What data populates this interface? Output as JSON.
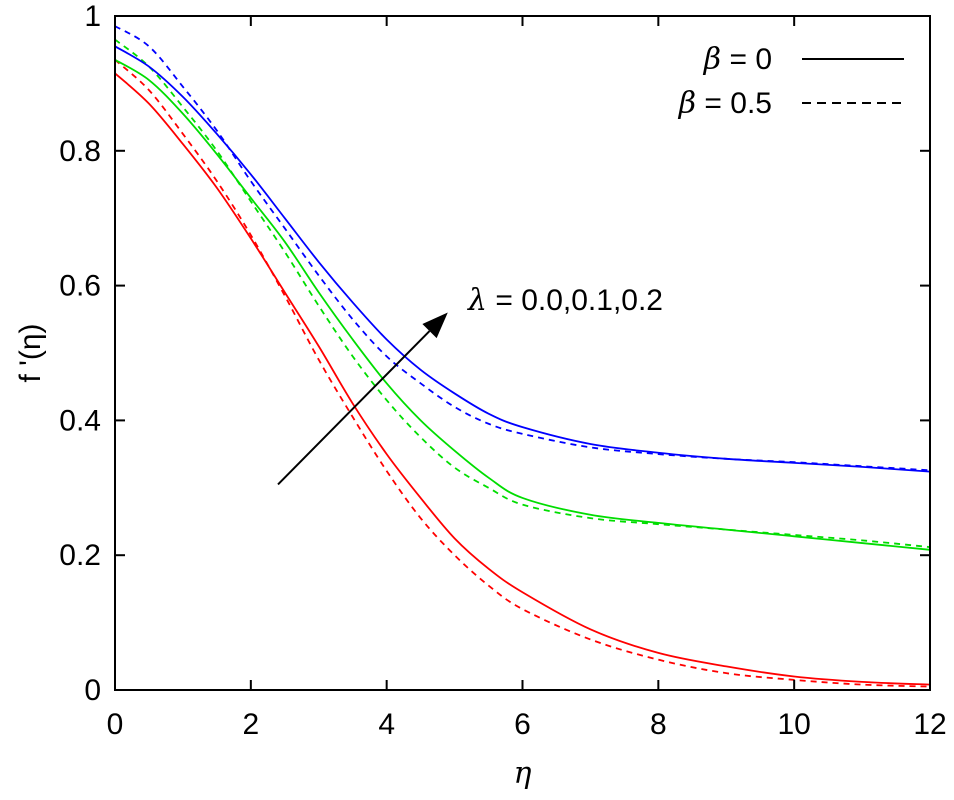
{
  "chart_data": {
    "type": "line",
    "xlabel": "η",
    "ylabel": "f '(η)",
    "xlim": [
      0,
      12
    ],
    "ylim": [
      0,
      1
    ],
    "x_ticks": [
      "0",
      "2",
      "4",
      "6",
      "8",
      "10",
      "12"
    ],
    "y_ticks": [
      "0",
      "0.2",
      "0.4",
      "0.6",
      "0.8",
      "1"
    ],
    "grid": false,
    "legend": {
      "placement": "top-right",
      "entries": [
        {
          "symbol": "β",
          "text": " = 0",
          "linestyle": "solid"
        },
        {
          "symbol": "β",
          "text": " = 0.5",
          "linestyle": "dashed"
        }
      ]
    },
    "annotation": {
      "symbol": "λ",
      "text": " = 0.0,0.1,0.2",
      "arrow": {
        "from": [
          2.4,
          0.305
        ],
        "to": [
          4.9,
          0.56
        ]
      }
    },
    "series": [
      {
        "lambda": "0.0",
        "beta": "0",
        "color": "#ff0000",
        "dash": false,
        "x": [
          0,
          0.5,
          1,
          1.5,
          2,
          2.5,
          3,
          3.5,
          4,
          4.5,
          5,
          5.5,
          6,
          7,
          8,
          9,
          10,
          11,
          12
        ],
        "y": [
          0.915,
          0.87,
          0.81,
          0.745,
          0.67,
          0.59,
          0.51,
          0.425,
          0.35,
          0.285,
          0.225,
          0.18,
          0.145,
          0.09,
          0.055,
          0.035,
          0.02,
          0.012,
          0.008
        ]
      },
      {
        "lambda": "0.0",
        "beta": "0.5",
        "color": "#ff0000",
        "dash": true,
        "x": [
          0,
          0.5,
          1,
          1.5,
          2,
          2.5,
          3,
          3.5,
          4,
          4.5,
          5,
          5.5,
          6,
          7,
          8,
          9,
          10,
          11,
          12
        ],
        "y": [
          0.935,
          0.89,
          0.825,
          0.755,
          0.675,
          0.585,
          0.49,
          0.405,
          0.325,
          0.255,
          0.2,
          0.155,
          0.12,
          0.075,
          0.045,
          0.025,
          0.015,
          0.008,
          0.005
        ]
      },
      {
        "lambda": "0.1",
        "beta": "0",
        "color": "#00dd00",
        "dash": false,
        "x": [
          0,
          0.5,
          1,
          1.5,
          2,
          2.5,
          3,
          3.5,
          4,
          4.5,
          5,
          5.5,
          6,
          7,
          8,
          9,
          10,
          11,
          12
        ],
        "y": [
          0.935,
          0.905,
          0.855,
          0.795,
          0.73,
          0.665,
          0.59,
          0.52,
          0.455,
          0.4,
          0.355,
          0.315,
          0.285,
          0.26,
          0.248,
          0.238,
          0.228,
          0.218,
          0.208
        ]
      },
      {
        "lambda": "0.1",
        "beta": "0.5",
        "color": "#00dd00",
        "dash": true,
        "x": [
          0,
          0.5,
          1,
          1.5,
          2,
          2.5,
          3,
          3.5,
          4,
          4.5,
          5,
          5.5,
          6,
          7,
          8,
          9,
          10,
          11,
          12
        ],
        "y": [
          0.965,
          0.925,
          0.865,
          0.8,
          0.725,
          0.65,
          0.57,
          0.495,
          0.43,
          0.375,
          0.33,
          0.3,
          0.275,
          0.255,
          0.246,
          0.238,
          0.23,
          0.222,
          0.212
        ]
      },
      {
        "lambda": "0.2",
        "beta": "0",
        "color": "#0000ff",
        "dash": false,
        "x": [
          0,
          0.5,
          1,
          1.5,
          2,
          2.5,
          3,
          3.5,
          4,
          4.5,
          5,
          5.5,
          6,
          7,
          8,
          9,
          10,
          11,
          12
        ],
        "y": [
          0.955,
          0.925,
          0.88,
          0.825,
          0.765,
          0.7,
          0.635,
          0.575,
          0.52,
          0.475,
          0.44,
          0.41,
          0.39,
          0.365,
          0.352,
          0.343,
          0.337,
          0.331,
          0.324
        ]
      },
      {
        "lambda": "0.2",
        "beta": "0.5",
        "color": "#0000ff",
        "dash": true,
        "x": [
          0,
          0.5,
          1,
          1.5,
          2,
          2.5,
          3,
          3.5,
          4,
          4.5,
          5,
          5.5,
          6,
          7,
          8,
          9,
          10,
          11,
          12
        ],
        "y": [
          0.985,
          0.955,
          0.895,
          0.83,
          0.755,
          0.685,
          0.615,
          0.55,
          0.495,
          0.455,
          0.42,
          0.395,
          0.38,
          0.36,
          0.35,
          0.343,
          0.338,
          0.332,
          0.326
        ]
      }
    ]
  }
}
